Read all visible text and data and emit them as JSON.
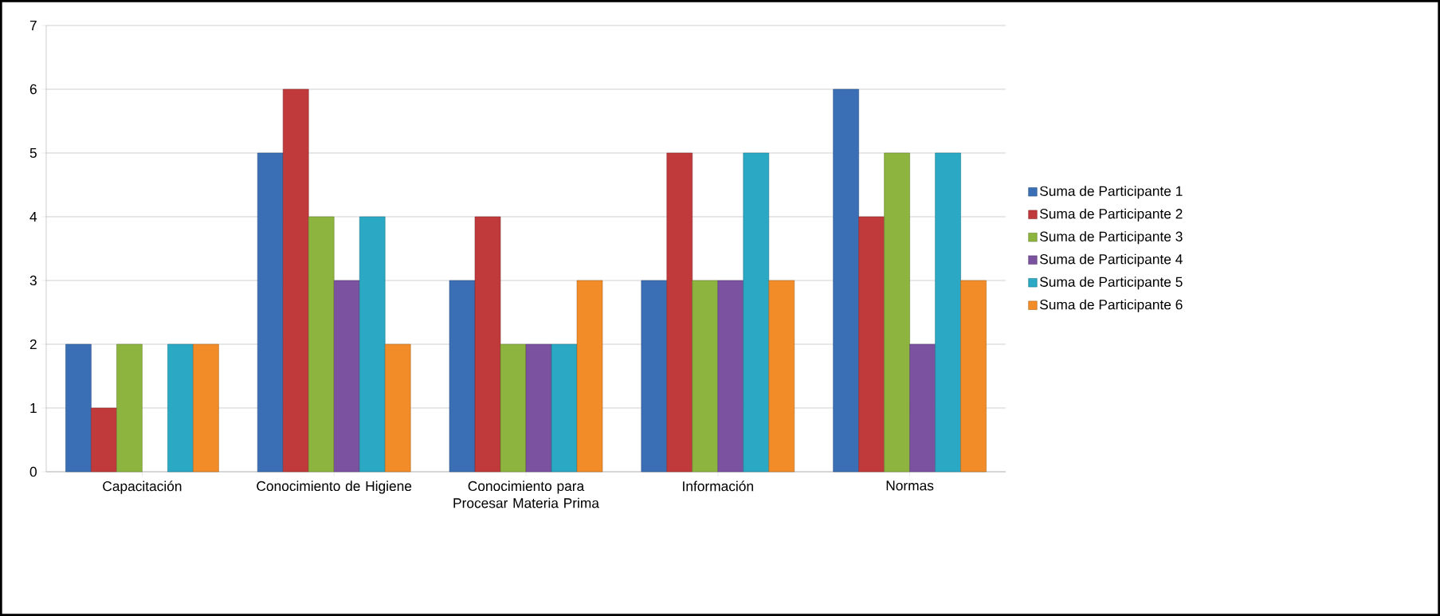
{
  "chart_data": {
    "type": "bar",
    "categories": [
      "Capacitación",
      "Conocimiento de Higiene",
      "Conocimiento para Procesar Materia Prima",
      "Información",
      "Normas"
    ],
    "series": [
      {
        "name": "Suma de Participante 1",
        "color": "#3a6fb5",
        "values": [
          2,
          5,
          3,
          3,
          6
        ]
      },
      {
        "name": "Suma de Participante 2",
        "color": "#c0393b",
        "values": [
          1,
          6,
          4,
          5,
          4
        ]
      },
      {
        "name": "Suma de Participante 3",
        "color": "#8db43e",
        "values": [
          2,
          4,
          2,
          3,
          5
        ]
      },
      {
        "name": "Suma de Participante 4",
        "color": "#7a52a0",
        "values": [
          null,
          3,
          2,
          3,
          2
        ]
      },
      {
        "name": "Suma de Participante 5",
        "color": "#2aa8c4",
        "values": [
          2,
          4,
          2,
          5,
          5
        ]
      },
      {
        "name": "Suma de Participante 6",
        "color": "#f28c28",
        "values": [
          2,
          2,
          3,
          3,
          3
        ]
      }
    ],
    "ylim": [
      0,
      7
    ],
    "yticks": [
      0,
      1,
      2,
      3,
      4,
      5,
      6,
      7
    ],
    "grid": "y",
    "legend": "right"
  }
}
